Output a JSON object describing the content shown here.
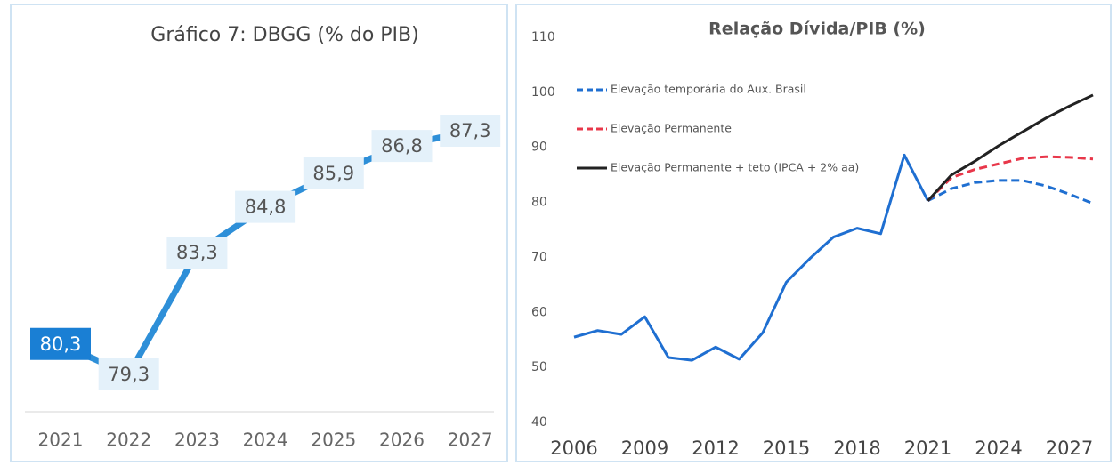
{
  "chart_data": [
    {
      "type": "line",
      "title": "Gráfico 7: DBGG (% do PIB)",
      "categories": [
        "2021",
        "2022",
        "2023",
        "2024",
        "2025",
        "2026",
        "2027"
      ],
      "values": [
        80.3,
        79.3,
        83.3,
        84.8,
        85.9,
        86.8,
        87.3
      ],
      "value_labels": [
        "80,3",
        "79,3",
        "83,3",
        "84,8",
        "85,9",
        "86,8",
        "87,3"
      ],
      "color": "#2e8fd8"
    },
    {
      "type": "line",
      "title": "Relação Dívida/PIB (%)",
      "x": [
        2006,
        2007,
        2008,
        2009,
        2010,
        2011,
        2012,
        2013,
        2014,
        2015,
        2016,
        2017,
        2018,
        2019,
        2020,
        2021,
        2022,
        2023,
        2024,
        2025,
        2026,
        2027,
        2028
      ],
      "series": [
        {
          "color": "#1f6fd1",
          "dash": false,
          "values": [
            55.5,
            56.7,
            56.0,
            59.2,
            51.8,
            51.3,
            53.7,
            51.5,
            56.3,
            65.5,
            69.8,
            73.7,
            75.3,
            74.3,
            88.6,
            80.3,
            null,
            null,
            null,
            null,
            null,
            null,
            null
          ]
        },
        {
          "name": "Elevação temporária do Aux. Brasil",
          "color": "#1f6fd1",
          "dash": true,
          "values": [
            null,
            null,
            null,
            null,
            null,
            null,
            null,
            null,
            null,
            null,
            null,
            null,
            null,
            null,
            null,
            80.3,
            82.5,
            83.6,
            84.0,
            84.0,
            83.0,
            81.5,
            79.8
          ]
        },
        {
          "name": "Elevação Permanente",
          "color": "#e8374a",
          "dash": true,
          "values": [
            null,
            null,
            null,
            null,
            null,
            null,
            null,
            null,
            null,
            null,
            null,
            null,
            null,
            null,
            null,
            80.3,
            84.5,
            86.0,
            87.0,
            88.0,
            88.3,
            88.2,
            87.9
          ]
        },
        {
          "name": "Elevação Permanente + teto (IPCA + 2% aa)",
          "color": "#222222",
          "dash": false,
          "values": [
            null,
            null,
            null,
            null,
            null,
            null,
            null,
            null,
            null,
            null,
            null,
            null,
            null,
            null,
            null,
            80.3,
            85.0,
            87.5,
            90.3,
            92.8,
            95.3,
            97.5,
            99.5
          ]
        }
      ],
      "xlim": [
        2006,
        2028
      ],
      "xticks": [
        2006,
        2009,
        2012,
        2015,
        2018,
        2021,
        2024,
        2027
      ],
      "ylim": [
        40,
        110
      ],
      "yticks": [
        40,
        50,
        60,
        70,
        80,
        90,
        100,
        110
      ]
    }
  ]
}
